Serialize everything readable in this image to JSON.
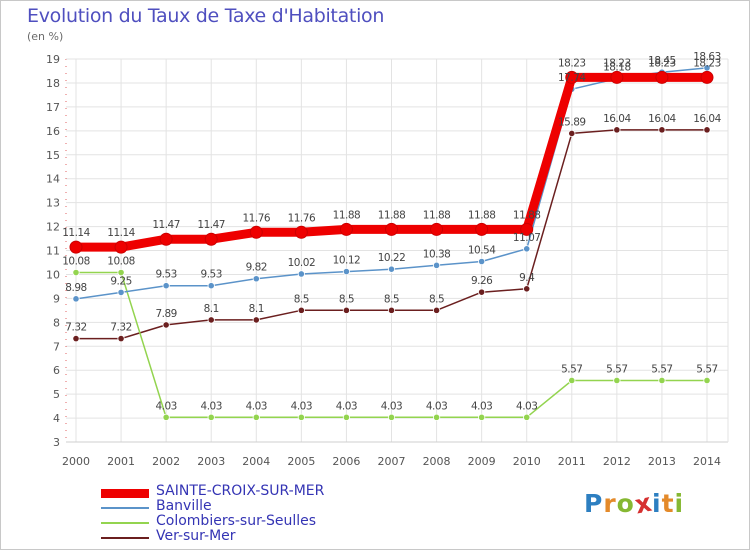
{
  "title": "Evolution du Taux de Taxe d'Habitation",
  "subtitle": "(en %)",
  "logo": {
    "text": "Proxiti",
    "letters": [
      {
        "ch": "P",
        "color": "#2d7fc1"
      },
      {
        "ch": "r",
        "color": "#e48a2a"
      },
      {
        "ch": "o",
        "color": "#86b832"
      },
      {
        "ch": "x",
        "color": "#d63030"
      },
      {
        "ch": "i",
        "color": "#2d7fc1"
      },
      {
        "ch": "t",
        "color": "#e48a2a"
      },
      {
        "ch": "i",
        "color": "#86b832"
      }
    ]
  },
  "chart_data": {
    "type": "line",
    "title": "Evolution du Taux de Taxe d'Habitation",
    "ylabel": "(en %)",
    "xlabel": "",
    "x": [
      "2000",
      "2001",
      "2002",
      "2003",
      "2004",
      "2005",
      "2006",
      "2007",
      "2008",
      "2009",
      "2010",
      "2011",
      "2012",
      "2013",
      "2014"
    ],
    "ylim": [
      3,
      19
    ],
    "yticks": [
      3,
      4,
      5,
      6,
      7,
      8,
      9,
      10,
      11,
      12,
      13,
      14,
      15,
      16,
      17,
      18,
      19
    ],
    "grid": true,
    "legend_position": "bottom-left",
    "series": [
      {
        "name": "SAINTE-CROIX-SUR-MER",
        "color": "#ee0000",
        "values": [
          11.14,
          11.14,
          11.47,
          11.47,
          11.76,
          11.76,
          11.88,
          11.88,
          11.88,
          11.88,
          11.88,
          18.23,
          18.23,
          18.23,
          18.23
        ],
        "labels": [
          "11.14",
          "11.14",
          "11.47",
          "11.47",
          "11.76",
          "11.76",
          "11.88",
          "11.88",
          "11.88",
          "11.88",
          "11.88",
          "18.23",
          "18.23",
          "18.23",
          "18.23"
        ]
      },
      {
        "name": "Banville",
        "color": "#5b93c9",
        "values": [
          8.98,
          9.25,
          9.53,
          9.53,
          9.82,
          10.02,
          10.12,
          10.22,
          10.38,
          10.54,
          11.07,
          17.74,
          18.18,
          18.45,
          18.63
        ],
        "labels": [
          "8.98",
          "9.25",
          "9.53",
          "9.53",
          "9.82",
          "10.02",
          "10.12",
          "10.22",
          "10.38",
          "10.54",
          "11.07",
          "17.74",
          "18.18",
          "18.45",
          "18.63"
        ]
      },
      {
        "name": "Colombiers-sur-Seulles",
        "color": "#93d44f",
        "values": [
          10.08,
          10.08,
          4.03,
          4.03,
          4.03,
          4.03,
          4.03,
          4.03,
          4.03,
          4.03,
          4.03,
          5.57,
          5.57,
          5.57,
          5.57
        ],
        "labels": [
          "10.08",
          "10.08",
          "4.03",
          "4.03",
          "4.03",
          "4.03",
          "4.03",
          "4.03",
          "4.03",
          "4.03",
          "4.03",
          "5.57",
          "5.57",
          "5.57",
          "5.57"
        ]
      },
      {
        "name": "Ver-sur-Mer",
        "color": "#6b1f1f",
        "values": [
          7.32,
          7.32,
          7.89,
          8.1,
          8.1,
          8.5,
          8.5,
          8.5,
          8.5,
          9.26,
          9.4,
          15.89,
          16.04,
          16.04,
          16.04
        ],
        "labels": [
          "7.32",
          "7.32",
          "7.89",
          "8.1",
          "8.1",
          "8.5",
          "8.5",
          "8.5",
          "8.5",
          "9.26",
          "9.4",
          "15.89",
          "16.04",
          "16.04",
          "16.04"
        ]
      }
    ]
  }
}
